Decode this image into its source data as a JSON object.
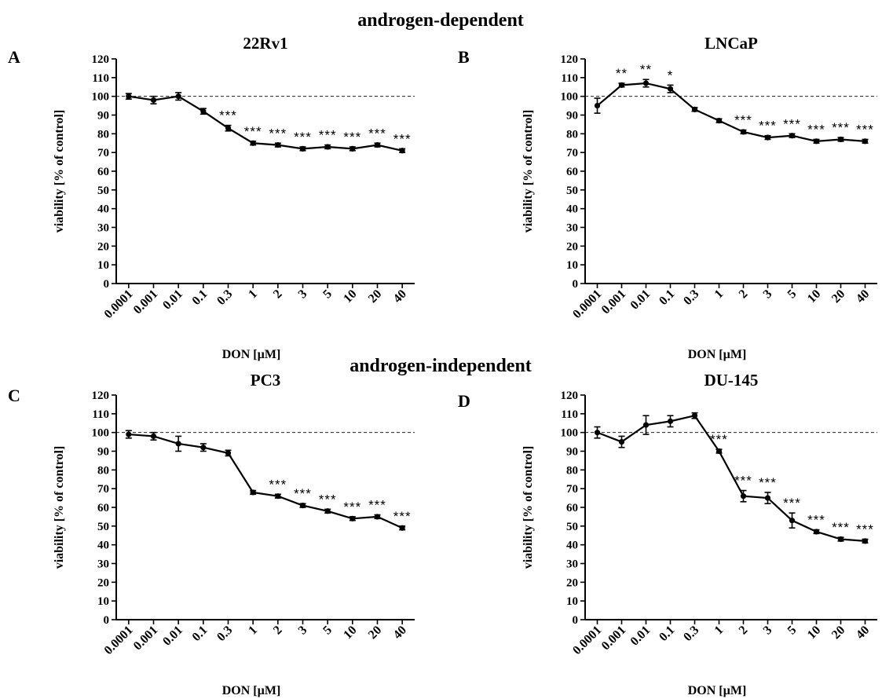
{
  "figure": {
    "group_top": "androgen-dependent",
    "group_bottom": "androgen-independent"
  },
  "chart_data": [
    {
      "type": "line",
      "panel": "A",
      "title": "22Rv1",
      "xlabel": "DON [µM]",
      "ylabel": "viability [% of control]",
      "categories": [
        "0.0001",
        "0.001",
        "0.01",
        "0.1",
        "0.3",
        "1",
        "2",
        "3",
        "5",
        "10",
        "20",
        "40"
      ],
      "values": [
        100,
        98,
        100,
        92,
        83,
        75,
        74,
        72,
        73,
        72,
        74,
        71
      ],
      "errors": [
        1.5,
        2,
        2,
        1.5,
        1.5,
        1,
        1,
        1,
        1,
        1,
        1,
        1
      ],
      "significance": [
        "",
        "",
        "",
        "",
        "***",
        "***",
        "***",
        "***",
        "***",
        "***",
        "***",
        "***"
      ],
      "reference_line": 100,
      "ylim": [
        0,
        120
      ],
      "yticks": [
        0,
        10,
        20,
        30,
        40,
        50,
        60,
        70,
        80,
        90,
        100,
        110,
        120
      ]
    },
    {
      "type": "line",
      "panel": "B",
      "title": "LNCaP",
      "xlabel": "DON [µM]",
      "ylabel": "viability [% of control]",
      "categories": [
        "0.0001",
        "0.001",
        "0.01",
        "0.1",
        "0.3",
        "1",
        "2",
        "3",
        "5",
        "10",
        "20",
        "40"
      ],
      "values": [
        95,
        106,
        107,
        104,
        93,
        87,
        81,
        78,
        79,
        76,
        77,
        76
      ],
      "errors": [
        4,
        1,
        2,
        2,
        1,
        1,
        1,
        1,
        1,
        1,
        1,
        1
      ],
      "significance": [
        "",
        "**",
        "**",
        "*",
        "",
        "",
        "***",
        "***",
        "***",
        "***",
        "***",
        "***"
      ],
      "reference_line": 100,
      "ylim": [
        0,
        120
      ],
      "yticks": [
        0,
        10,
        20,
        30,
        40,
        50,
        60,
        70,
        80,
        90,
        100,
        110,
        120
      ]
    },
    {
      "type": "line",
      "panel": "C",
      "title": "PC3",
      "xlabel": "DON [µM]",
      "ylabel": "viability [% of control]",
      "categories": [
        "0.0001",
        "0.001",
        "0.01",
        "0.1",
        "0.3",
        "1",
        "2",
        "3",
        "5",
        "10",
        "20",
        "40"
      ],
      "values": [
        99,
        98,
        94,
        92,
        89,
        68,
        66,
        61,
        58,
        54,
        55,
        49
      ],
      "errors": [
        2,
        2,
        4,
        2,
        1.5,
        1,
        1,
        1,
        1,
        1,
        1,
        1
      ],
      "significance": [
        "",
        "",
        "",
        "",
        "",
        "",
        "***",
        "***",
        "***",
        "***",
        "***",
        "***"
      ],
      "reference_line": 100,
      "ylim": [
        0,
        120
      ],
      "yticks": [
        0,
        10,
        20,
        30,
        40,
        50,
        60,
        70,
        80,
        90,
        100,
        110,
        120
      ]
    },
    {
      "type": "line",
      "panel": "D",
      "title": "DU-145",
      "xlabel": "DON [µM]",
      "ylabel": "viability [% of control]",
      "categories": [
        "0.0001",
        "0.001",
        "0.01",
        "0.1",
        "0.3",
        "1",
        "2",
        "3",
        "5",
        "10",
        "20",
        "40"
      ],
      "values": [
        100,
        95,
        104,
        106,
        109,
        90,
        66,
        65,
        53,
        47,
        43,
        42
      ],
      "errors": [
        3,
        3,
        5,
        3,
        1.5,
        1,
        3,
        3,
        4,
        1,
        1,
        1
      ],
      "significance": [
        "",
        "",
        "",
        "",
        "",
        "***",
        "***",
        "***",
        "***",
        "***",
        "***",
        "***"
      ],
      "reference_line": 100,
      "ylim": [
        0,
        120
      ],
      "yticks": [
        0,
        10,
        20,
        30,
        40,
        50,
        60,
        70,
        80,
        90,
        100,
        110,
        120
      ]
    }
  ]
}
